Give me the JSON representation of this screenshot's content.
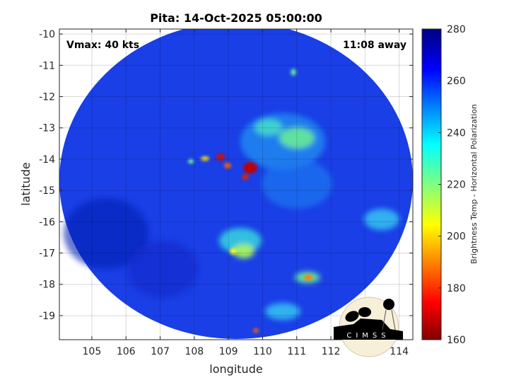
{
  "chart_data": {
    "type": "heatmap",
    "title": "Pita: 14-Oct-2025 05:00:00",
    "xlabel": "longitude",
    "ylabel": "latitude",
    "xlim": [
      104.05,
      114.4
    ],
    "ylim": [
      -19.77,
      -9.84
    ],
    "xticks": [
      "105",
      "106",
      "107",
      "108",
      "109",
      "110",
      "111",
      "112",
      "113",
      "114"
    ],
    "yticks": [
      "-10",
      "-11",
      "-12",
      "-13",
      "-14",
      "-15",
      "-16",
      "-17",
      "-18",
      "-19"
    ],
    "grid": true,
    "colorbar": {
      "label": "Brightness Temp - Horizontal Polarization",
      "range": [
        160,
        280
      ],
      "ticks": [
        "160",
        "180",
        "200",
        "220",
        "240",
        "260",
        "280"
      ],
      "colormap": "jet"
    },
    "annotations": {
      "vmax": "Vmax: 40 kts",
      "distance": "11:08 away"
    },
    "features": [
      {
        "desc": "convective core",
        "lon": 109.6,
        "lat": -14.2,
        "value": 170
      },
      {
        "desc": "convective core",
        "lon": 108.8,
        "lat": -13.9,
        "value": 175
      },
      {
        "desc": "rainband",
        "lon": 111.3,
        "lat": -17.8,
        "value": 200
      },
      {
        "desc": "rainband",
        "lon": 109.8,
        "lat": -17.0,
        "value": 225
      }
    ]
  },
  "logo": {
    "text": "CIMSS"
  }
}
